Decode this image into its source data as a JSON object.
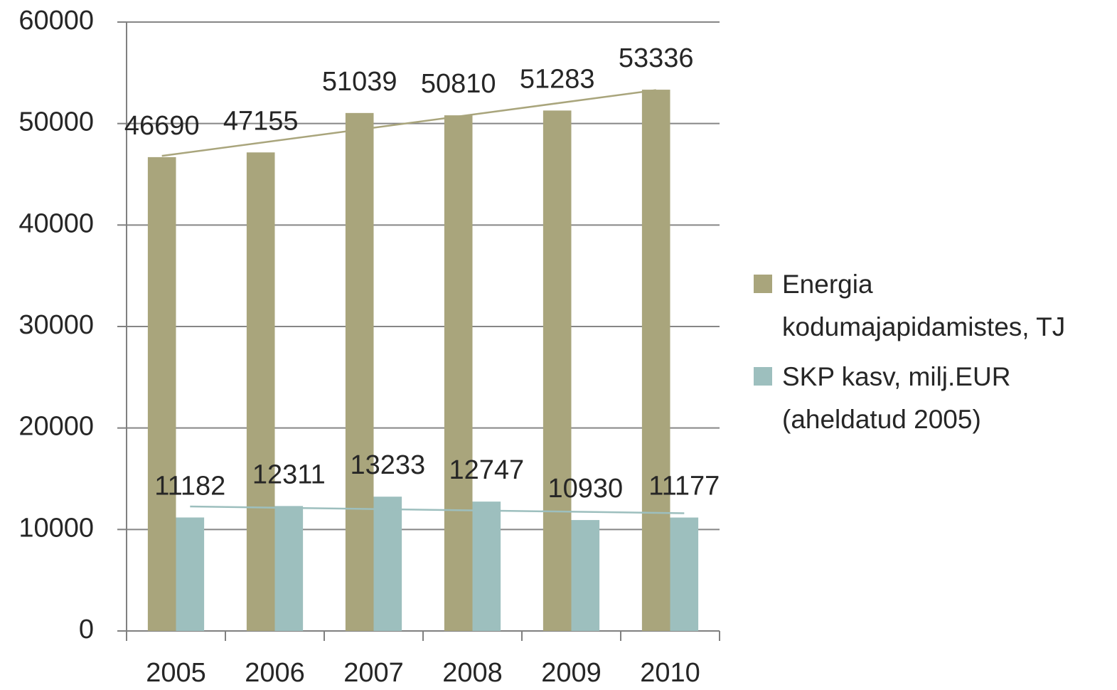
{
  "chart_data": {
    "type": "bar",
    "categories": [
      "2005",
      "2006",
      "2007",
      "2008",
      "2009",
      "2010"
    ],
    "series": [
      {
        "name": "Energia kodumajapidamistes, TJ",
        "color": "#a9a57c",
        "values": [
          46690,
          47155,
          51039,
          50810,
          51283,
          53336
        ]
      },
      {
        "name": "SKP kasv, milj.EUR (aheldatud 2005)",
        "color": "#9dbfbe",
        "values": [
          11182,
          12311,
          13233,
          12747,
          10930,
          11177
        ]
      }
    ],
    "ylim": [
      0,
      60000
    ],
    "yticks": [
      0,
      10000,
      20000,
      30000,
      40000,
      50000,
      60000
    ],
    "grid": true,
    "trendline": true,
    "legend": "right"
  }
}
